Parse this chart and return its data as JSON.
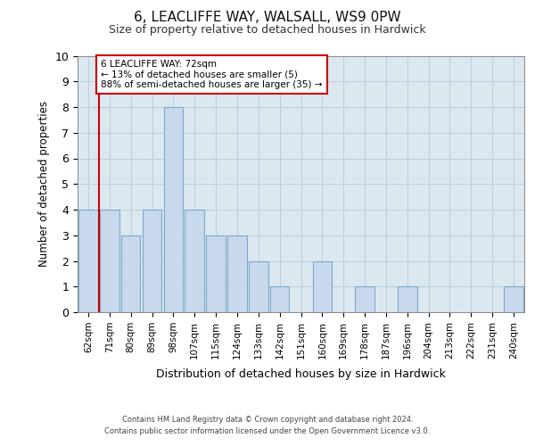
{
  "title1": "6, LEACLIFFE WAY, WALSALL, WS9 0PW",
  "title2": "Size of property relative to detached houses in Hardwick",
  "xlabel": "Distribution of detached houses by size in Hardwick",
  "ylabel": "Number of detached properties",
  "categories": [
    "62sqm",
    "71sqm",
    "80sqm",
    "89sqm",
    "98sqm",
    "107sqm",
    "115sqm",
    "124sqm",
    "133sqm",
    "142sqm",
    "151sqm",
    "160sqm",
    "169sqm",
    "178sqm",
    "187sqm",
    "196sqm",
    "204sqm",
    "213sqm",
    "222sqm",
    "231sqm",
    "240sqm"
  ],
  "values": [
    4,
    4,
    3,
    4,
    8,
    4,
    3,
    3,
    2,
    1,
    0,
    2,
    0,
    1,
    0,
    1,
    0,
    0,
    0,
    0,
    1
  ],
  "bar_color": "#c8d8ed",
  "bar_edge_color": "#7aaac8",
  "annotation_text_line1": "6 LEACLIFFE WAY: 72sqm",
  "annotation_text_line2": "← 13% of detached houses are smaller (5)",
  "annotation_text_line3": "88% of semi-detached houses are larger (35) →",
  "annotation_box_color": "#ffffff",
  "annotation_box_edge": "#cc0000",
  "vline_color": "#cc0000",
  "vline_x_idx": 0,
  "ylim": [
    0,
    10
  ],
  "yticks": [
    0,
    1,
    2,
    3,
    4,
    5,
    6,
    7,
    8,
    9,
    10
  ],
  "grid_color": "#b8cde0",
  "background_color": "#dce8f0",
  "footer1": "Contains HM Land Registry data © Crown copyright and database right 2024.",
  "footer2": "Contains public sector information licensed under the Open Government Licence v3.0."
}
